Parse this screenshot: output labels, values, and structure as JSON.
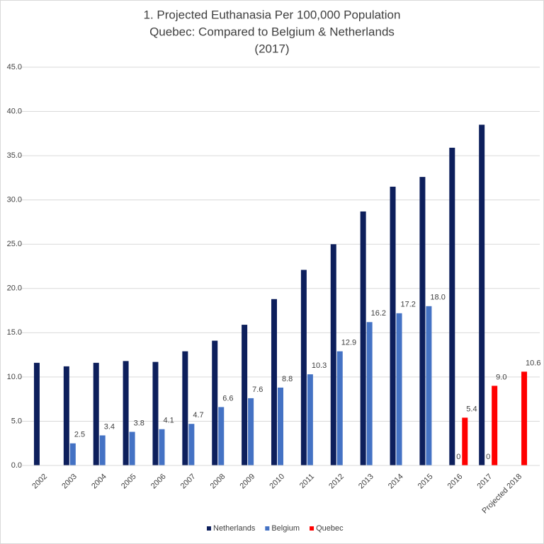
{
  "chart_data": {
    "type": "bar",
    "title": [
      "1. Projected Euthanasia Per 100,000 Population",
      "Quebec: Compared to Belgium & Netherlands",
      "(2017)"
    ],
    "categories": [
      "2002",
      "2003",
      "2004",
      "2005",
      "2006",
      "2007",
      "2008",
      "2009",
      "2010",
      "2011",
      "2012",
      "2013",
      "2014",
      "2015",
      "2016",
      "2017",
      "Projected 2018"
    ],
    "series": [
      {
        "name": "Netherlands",
        "color": "#0d1f5c",
        "values": [
          11.6,
          11.2,
          11.6,
          11.8,
          11.7,
          12.9,
          14.1,
          15.9,
          18.8,
          22.1,
          25.0,
          28.7,
          31.5,
          32.6,
          35.9,
          38.5,
          null
        ]
      },
      {
        "name": "Belgium",
        "color": "#4472c4",
        "values": [
          null,
          2.5,
          3.4,
          3.8,
          4.1,
          4.7,
          6.6,
          7.6,
          8.8,
          10.3,
          12.9,
          16.2,
          17.2,
          18.0,
          0,
          0,
          null
        ],
        "value_labels": [
          null,
          "2.5",
          "3.4",
          "3.8",
          "4.1",
          "4.7",
          "6.6",
          "7.6",
          "8.8",
          "10.3",
          "12.9",
          "16.2",
          "17.2",
          "18.0",
          "0",
          "0",
          null
        ]
      },
      {
        "name": "Quebec",
        "color": "#ff0000",
        "values": [
          null,
          null,
          null,
          null,
          null,
          null,
          null,
          null,
          null,
          null,
          null,
          null,
          null,
          null,
          5.4,
          9.0,
          10.6
        ],
        "value_labels": [
          null,
          null,
          null,
          null,
          null,
          null,
          null,
          null,
          null,
          null,
          null,
          null,
          null,
          null,
          "5.4",
          "9.0",
          "10.6"
        ]
      }
    ],
    "ylim": [
      0,
      45
    ],
    "yticks": [
      {
        "value": 0,
        "label": "0.0"
      },
      {
        "value": 5,
        "label": "5.0"
      },
      {
        "value": 10,
        "label": "10.0"
      },
      {
        "value": 15,
        "label": "15.0"
      },
      {
        "value": 20,
        "label": "20.0"
      },
      {
        "value": 25,
        "label": "25.0"
      },
      {
        "value": 30,
        "label": "30.0"
      },
      {
        "value": 35,
        "label": "35.0"
      },
      {
        "value": 40,
        "label": "40.0"
      },
      {
        "value": 45,
        "label": "45.0"
      }
    ],
    "grid": true,
    "legend": "bottom"
  }
}
